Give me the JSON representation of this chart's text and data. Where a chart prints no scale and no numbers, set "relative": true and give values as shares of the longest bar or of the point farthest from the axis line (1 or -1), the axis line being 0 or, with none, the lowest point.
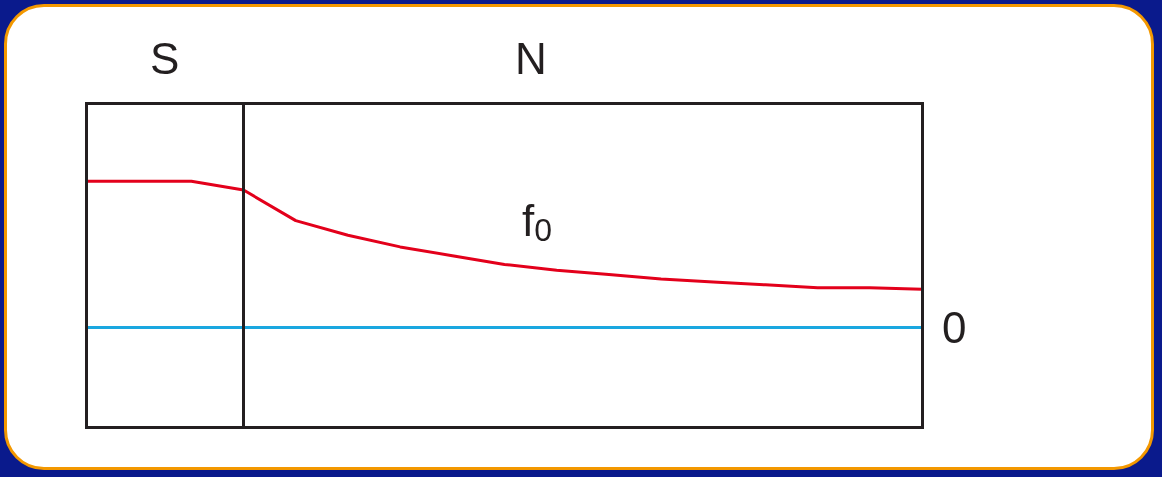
{
  "chart_data": {
    "type": "line",
    "relative": true,
    "marker": "none",
    "line_style": "solid",
    "categories": [
      null,
      null,
      null,
      null,
      null,
      null,
      null,
      null,
      null,
      null,
      null,
      null,
      null,
      null,
      null,
      null,
      null
    ],
    "series": [
      {
        "color": "#e3001b",
        "values": [
          1,
          1,
          1,
          0.94,
          0.73,
          0.63,
          0.55,
          0.49,
          0.43,
          0.39,
          0.36,
          0.33,
          0.31,
          0.29,
          0.27,
          0.27,
          0.26
        ]
      }
    ],
    "ref_lines": [
      {
        "axis": "y",
        "value": 0,
        "label": "0",
        "color": "#1aa7e0"
      }
    ],
    "annotations": [
      "S",
      "N",
      "f$_{0}$"
    ]
  }
}
